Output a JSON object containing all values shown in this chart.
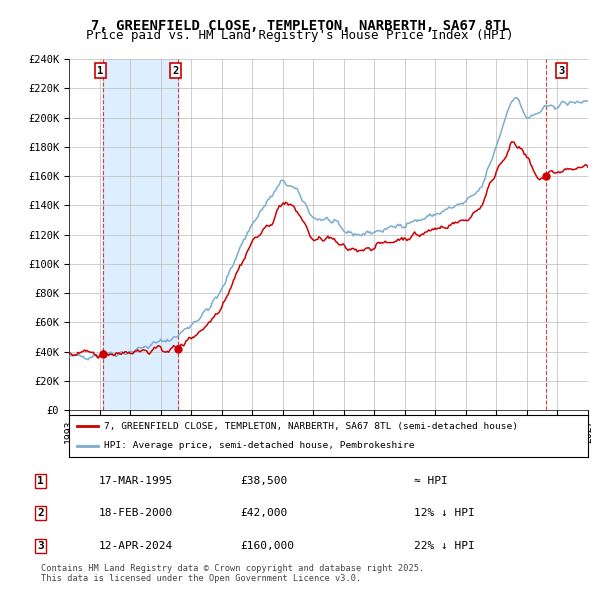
{
  "title": "7, GREENFIELD CLOSE, TEMPLETON, NARBERTH, SA67 8TL",
  "subtitle": "Price paid vs. HM Land Registry's House Price Index (HPI)",
  "ylim": [
    0,
    240000
  ],
  "yticks": [
    0,
    20000,
    40000,
    60000,
    80000,
    100000,
    120000,
    140000,
    160000,
    180000,
    200000,
    220000,
    240000
  ],
  "ytick_labels": [
    "£0",
    "£20K",
    "£40K",
    "£60K",
    "£80K",
    "£100K",
    "£120K",
    "£140K",
    "£160K",
    "£180K",
    "£200K",
    "£220K",
    "£240K"
  ],
  "xlim_start": 1993.0,
  "xlim_end": 2027.0,
  "sale1_date": 1995.21,
  "sale1_price": 38500,
  "sale1_label": "1",
  "sale2_date": 2000.13,
  "sale2_price": 42000,
  "sale2_label": "2",
  "sale3_date": 2024.28,
  "sale3_price": 160000,
  "sale3_label": "3",
  "shaded_region_start": 1995.21,
  "shaded_region_end": 2000.13,
  "red_line_color": "#cc0000",
  "blue_line_color": "#7aadcf",
  "shaded_color": "#ddeeff",
  "grid_color": "#bbbbbb",
  "background_color": "#ffffff",
  "title_fontsize": 10,
  "subtitle_fontsize": 9,
  "legend_line1": "7, GREENFIELD CLOSE, TEMPLETON, NARBERTH, SA67 8TL (semi-detached house)",
  "legend_line2": "HPI: Average price, semi-detached house, Pembrokeshire",
  "table_row1": [
    "1",
    "17-MAR-1995",
    "£38,500",
    "≈ HPI"
  ],
  "table_row2": [
    "2",
    "18-FEB-2000",
    "£42,000",
    "12% ↓ HPI"
  ],
  "table_row3": [
    "3",
    "12-APR-2024",
    "£160,000",
    "22% ↓ HPI"
  ],
  "footer": "Contains HM Land Registry data © Crown copyright and database right 2025.\nThis data is licensed under the Open Government Licence v3.0."
}
